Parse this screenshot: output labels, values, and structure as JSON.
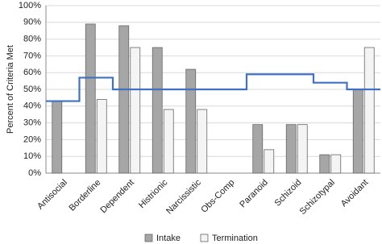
{
  "chart_data": {
    "type": "bar",
    "y_label": "Percent of Criteria Met",
    "categories": [
      "Antisocial",
      "Borderline",
      "Dependent",
      "Histrionic",
      "Narcissistic",
      "Obs-Comp",
      "Paranoid",
      "Schizoid",
      "Schizotypal",
      "Avoidant"
    ],
    "series": [
      {
        "name": "Intake",
        "color": "#a6a6a6",
        "values": [
          43,
          89,
          88,
          75,
          62,
          0,
          29,
          29,
          11,
          50
        ]
      },
      {
        "name": "Termination",
        "color": "#f4f4f4",
        "values": [
          0,
          44,
          75,
          38,
          38,
          0,
          14,
          29,
          11,
          75
        ]
      }
    ],
    "step_line": {
      "color": "#3f72c0",
      "values": [
        43,
        57,
        50,
        50,
        50,
        50,
        59,
        59,
        54,
        50
      ]
    },
    "ylim": [
      0,
      100
    ],
    "yticks": [
      {
        "value": 0,
        "label": "0%"
      },
      {
        "value": 10,
        "label": "10%"
      },
      {
        "value": 20,
        "label": "20%"
      },
      {
        "value": 30,
        "label": "30%"
      },
      {
        "value": 40,
        "label": "40%"
      },
      {
        "value": 50,
        "label": "50%"
      },
      {
        "value": 60,
        "label": "60%"
      },
      {
        "value": 70,
        "label": "70%"
      },
      {
        "value": 80,
        "label": "80%"
      },
      {
        "value": 90,
        "label": "90%"
      },
      {
        "value": 100,
        "label": "100%"
      }
    ],
    "grid": true
  }
}
